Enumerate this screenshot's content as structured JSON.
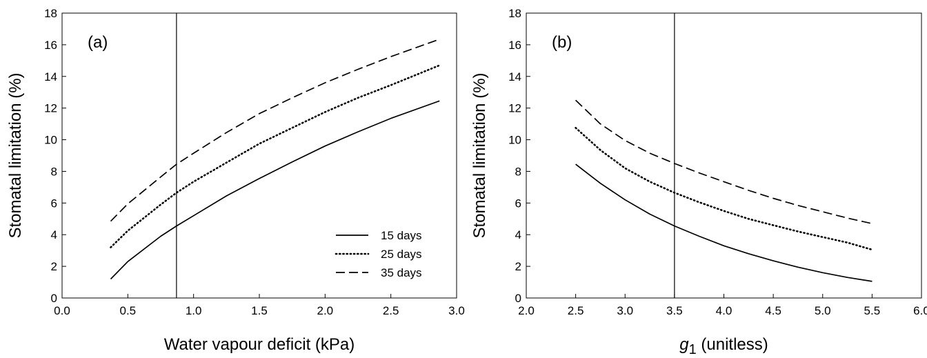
{
  "chart_data": [
    {
      "type": "line",
      "panel_label": "(a)",
      "xlabel": "Water vapour deficit (kPa)",
      "ylabel": "Stomatal limitation (%)",
      "xlim": [
        0.0,
        3.0
      ],
      "ylim": [
        0,
        18
      ],
      "x_ticks": [
        "0.0",
        "0.5",
        "1.0",
        "1.5",
        "2.0",
        "2.5",
        "3.0"
      ],
      "y_ticks": [
        "0",
        "2",
        "4",
        "6",
        "8",
        "10",
        "12",
        "14",
        "16",
        "18"
      ],
      "reference_line_x": 0.87,
      "legend": {
        "position": "bottom-right"
      },
      "series": [
        {
          "name": "15 days",
          "style": "solid",
          "x": [
            0.37,
            0.5,
            0.75,
            0.87,
            1.0,
            1.25,
            1.5,
            1.75,
            2.0,
            2.25,
            2.5,
            2.87
          ],
          "y": [
            1.2,
            2.3,
            3.9,
            4.55,
            5.2,
            6.45,
            7.55,
            8.6,
            9.6,
            10.5,
            11.35,
            12.45
          ]
        },
        {
          "name": "25 days",
          "style": "dotted",
          "x": [
            0.37,
            0.5,
            0.75,
            0.87,
            1.0,
            1.25,
            1.5,
            1.75,
            2.0,
            2.25,
            2.5,
            2.87
          ],
          "y": [
            3.2,
            4.25,
            5.9,
            6.65,
            7.35,
            8.55,
            9.75,
            10.75,
            11.75,
            12.65,
            13.45,
            14.7
          ]
        },
        {
          "name": "35 days",
          "style": "dashed",
          "x": [
            0.37,
            0.5,
            0.75,
            0.87,
            1.0,
            1.25,
            1.5,
            1.75,
            2.0,
            2.25,
            2.5,
            2.87
          ],
          "y": [
            4.85,
            5.95,
            7.65,
            8.45,
            9.15,
            10.45,
            11.65,
            12.65,
            13.6,
            14.45,
            15.25,
            16.35
          ]
        }
      ]
    },
    {
      "type": "line",
      "panel_label": "(b)",
      "xlabel_main": "g",
      "xlabel_sub": "1",
      "xlabel_rest": " (unitless)",
      "ylabel": "Stomatal limitation (%)",
      "xlim": [
        2.0,
        6.0
      ],
      "ylim": [
        0,
        18
      ],
      "x_ticks": [
        "2.0",
        "2.5",
        "3.0",
        "3.5",
        "4.0",
        "4.5",
        "5.0",
        "5.5",
        "6.0"
      ],
      "y_ticks": [
        "0",
        "2",
        "4",
        "6",
        "8",
        "10",
        "12",
        "14",
        "16",
        "18"
      ],
      "reference_line_x": 3.5,
      "series": [
        {
          "name": "15 days",
          "style": "solid",
          "x": [
            2.5,
            2.75,
            3.0,
            3.25,
            3.5,
            3.75,
            4.0,
            4.25,
            4.5,
            4.75,
            5.0,
            5.25,
            5.5
          ],
          "y": [
            8.45,
            7.25,
            6.2,
            5.3,
            4.55,
            3.9,
            3.3,
            2.8,
            2.35,
            1.95,
            1.6,
            1.3,
            1.05
          ]
        },
        {
          "name": "25 days",
          "style": "dotted",
          "x": [
            2.5,
            2.75,
            3.0,
            3.25,
            3.5,
            3.75,
            4.0,
            4.25,
            4.5,
            4.75,
            5.0,
            5.25,
            5.5
          ],
          "y": [
            10.75,
            9.35,
            8.2,
            7.35,
            6.65,
            6.05,
            5.5,
            5.0,
            4.6,
            4.2,
            3.85,
            3.5,
            3.05
          ]
        },
        {
          "name": "35 days",
          "style": "dashed",
          "x": [
            2.5,
            2.75,
            3.0,
            3.25,
            3.5,
            3.75,
            4.0,
            4.25,
            4.5,
            4.75,
            5.0,
            5.25,
            5.5
          ],
          "y": [
            12.5,
            11.0,
            9.95,
            9.15,
            8.5,
            7.9,
            7.35,
            6.8,
            6.3,
            5.85,
            5.45,
            5.05,
            4.7
          ]
        }
      ]
    }
  ]
}
